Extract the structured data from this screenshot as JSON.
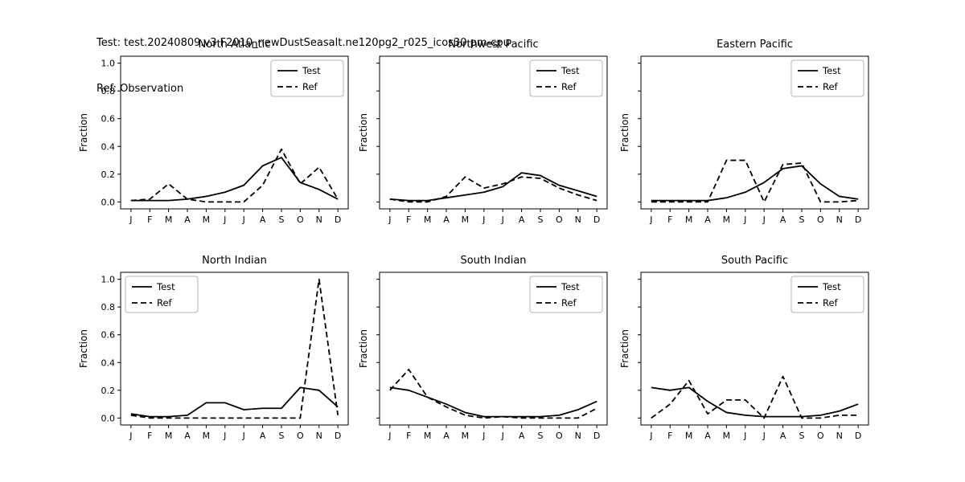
{
  "header": {
    "test_line": "Test: test.20240809.v3.F2010_newDustSeasalt.ne120pg2_r025_icos30.pm-cpu",
    "ref_line": "Ref: Observation"
  },
  "colors": {
    "line": "#000000",
    "background": "#ffffff",
    "legend_border": "#b3b3b3"
  },
  "chart_data": [
    {
      "type": "line",
      "title": "North Atlantic",
      "ylabel": "Fraction",
      "categories": [
        "J",
        "F",
        "M",
        "A",
        "M",
        "J",
        "J",
        "A",
        "S",
        "O",
        "N",
        "D"
      ],
      "ylim": [
        0,
        1
      ],
      "yticks": [
        0,
        0.2,
        0.4,
        0.6,
        0.8,
        1
      ],
      "show_ytick_labels": true,
      "legend_position": "top-right",
      "grid": false,
      "series": [
        {
          "name": "Test",
          "style": "solid",
          "values": [
            0.01,
            0.01,
            0.01,
            0.02,
            0.04,
            0.07,
            0.12,
            0.26,
            0.32,
            0.14,
            0.09,
            0.02
          ]
        },
        {
          "name": "Ref",
          "style": "dashed",
          "values": [
            0.01,
            0.02,
            0.13,
            0.02,
            0.0,
            0.0,
            0.0,
            0.12,
            0.38,
            0.13,
            0.25,
            0.02
          ]
        }
      ]
    },
    {
      "type": "line",
      "title": "Northwest Pacific",
      "ylabel": "Fraction",
      "categories": [
        "J",
        "F",
        "M",
        "A",
        "M",
        "J",
        "J",
        "A",
        "S",
        "O",
        "N",
        "D"
      ],
      "ylim": [
        0,
        1
      ],
      "yticks": [
        0,
        0.2,
        0.4,
        0.6,
        0.8,
        1
      ],
      "show_ytick_labels": false,
      "legend_position": "top-right",
      "grid": false,
      "series": [
        {
          "name": "Test",
          "style": "solid",
          "values": [
            0.02,
            0.01,
            0.01,
            0.03,
            0.05,
            0.07,
            0.11,
            0.21,
            0.19,
            0.12,
            0.08,
            0.04
          ]
        },
        {
          "name": "Ref",
          "style": "dashed",
          "values": [
            0.02,
            0.0,
            0.0,
            0.04,
            0.18,
            0.1,
            0.13,
            0.18,
            0.17,
            0.1,
            0.05,
            0.01
          ]
        }
      ]
    },
    {
      "type": "line",
      "title": "Eastern Pacific",
      "ylabel": "Fraction",
      "categories": [
        "J",
        "F",
        "M",
        "A",
        "M",
        "J",
        "J",
        "A",
        "S",
        "O",
        "N",
        "D"
      ],
      "ylim": [
        0,
        1
      ],
      "yticks": [
        0,
        0.2,
        0.4,
        0.6,
        0.8,
        1
      ],
      "show_ytick_labels": false,
      "legend_position": "top-right",
      "grid": false,
      "series": [
        {
          "name": "Test",
          "style": "solid",
          "values": [
            0.01,
            0.01,
            0.01,
            0.01,
            0.03,
            0.07,
            0.14,
            0.24,
            0.26,
            0.13,
            0.04,
            0.02
          ]
        },
        {
          "name": "Ref",
          "style": "dashed",
          "values": [
            0.0,
            0.0,
            0.0,
            0.0,
            0.3,
            0.3,
            0.0,
            0.27,
            0.28,
            0.0,
            0.0,
            0.01
          ]
        }
      ]
    },
    {
      "type": "line",
      "title": "North Indian",
      "ylabel": "Fraction",
      "categories": [
        "J",
        "F",
        "M",
        "A",
        "M",
        "J",
        "J",
        "A",
        "S",
        "O",
        "N",
        "D"
      ],
      "ylim": [
        0,
        1
      ],
      "yticks": [
        0,
        0.2,
        0.4,
        0.6,
        0.8,
        1
      ],
      "show_ytick_labels": true,
      "legend_position": "top-left",
      "grid": false,
      "series": [
        {
          "name": "Test",
          "style": "solid",
          "values": [
            0.03,
            0.01,
            0.01,
            0.02,
            0.11,
            0.11,
            0.06,
            0.07,
            0.07,
            0.22,
            0.2,
            0.08
          ]
        },
        {
          "name": "Ref",
          "style": "dashed",
          "values": [
            0.02,
            0.0,
            0.0,
            0.0,
            0.0,
            0.0,
            0.0,
            0.0,
            0.0,
            0.0,
            1.0,
            0.02
          ]
        }
      ]
    },
    {
      "type": "line",
      "title": "South Indian",
      "ylabel": "Fraction",
      "categories": [
        "J",
        "F",
        "M",
        "A",
        "M",
        "J",
        "J",
        "A",
        "S",
        "O",
        "N",
        "D"
      ],
      "ylim": [
        0,
        1
      ],
      "yticks": [
        0,
        0.2,
        0.4,
        0.6,
        0.8,
        1
      ],
      "show_ytick_labels": false,
      "legend_position": "top-right",
      "grid": false,
      "series": [
        {
          "name": "Test",
          "style": "solid",
          "values": [
            0.22,
            0.2,
            0.15,
            0.1,
            0.04,
            0.01,
            0.01,
            0.01,
            0.01,
            0.02,
            0.06,
            0.12
          ]
        },
        {
          "name": "Ref",
          "style": "dashed",
          "values": [
            0.2,
            0.35,
            0.15,
            0.08,
            0.02,
            0.0,
            0.01,
            0.0,
            0.0,
            0.0,
            0.0,
            0.07
          ]
        }
      ]
    },
    {
      "type": "line",
      "title": "South Pacific",
      "ylabel": "Fraction",
      "categories": [
        "J",
        "F",
        "M",
        "A",
        "M",
        "J",
        "J",
        "A",
        "S",
        "O",
        "N",
        "D"
      ],
      "ylim": [
        0,
        1
      ],
      "yticks": [
        0,
        0.2,
        0.4,
        0.6,
        0.8,
        1
      ],
      "show_ytick_labels": false,
      "legend_position": "top-right",
      "grid": false,
      "series": [
        {
          "name": "Test",
          "style": "solid",
          "values": [
            0.22,
            0.2,
            0.22,
            0.12,
            0.04,
            0.02,
            0.01,
            0.01,
            0.01,
            0.02,
            0.05,
            0.1
          ]
        },
        {
          "name": "Ref",
          "style": "dashed",
          "values": [
            0.0,
            0.1,
            0.27,
            0.03,
            0.13,
            0.13,
            0.0,
            0.3,
            0.0,
            0.0,
            0.02,
            0.02
          ]
        }
      ]
    }
  ]
}
